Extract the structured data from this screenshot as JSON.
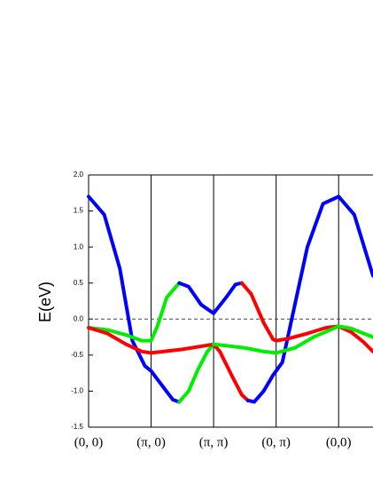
{
  "chart_data": {
    "type": "line",
    "ylabel": "E(eV)",
    "xlim": [
      0,
      4.55
    ],
    "ylim": [
      -1.5,
      2.0
    ],
    "xticks": [
      {
        "value": 0,
        "label": "(0, 0)"
      },
      {
        "value": 1,
        "label": "(π, 0)"
      },
      {
        "value": 2,
        "label": "(π, π)"
      },
      {
        "value": 3,
        "label": "(0, π)"
      },
      {
        "value": 4,
        "label": "(0,0)"
      }
    ],
    "yticks": [
      -1.5,
      {
        "value": -1.0,
        "label": "-1.0"
      },
      -0.5,
      {
        "value": 0.0,
        "label": "0.0"
      },
      0.5,
      {
        "value": 1.0,
        "label": "1.0"
      },
      1.5,
      {
        "value": 2.0,
        "label": "2.0"
      }
    ],
    "vlines": true,
    "zero_line": true,
    "series": [
      {
        "color": "#0000ff",
        "x": [
          0,
          0.25,
          0.5,
          0.7,
          0.9,
          1.0,
          1.2,
          1.35,
          1.45
        ],
        "values": [
          1.7,
          1.45,
          0.7,
          -0.3,
          -0.65,
          -0.72,
          -0.95,
          -1.12,
          -1.15
        ]
      },
      {
        "color": "#00ee00",
        "x": [
          1.45,
          1.6,
          1.75,
          1.9,
          2.0
        ],
        "values": [
          -1.15,
          -1.0,
          -0.7,
          -0.45,
          -0.35
        ]
      },
      {
        "color": "#ff0000",
        "x": [
          2.0,
          2.1,
          2.3,
          2.45,
          2.55
        ],
        "values": [
          -0.35,
          -0.45,
          -0.8,
          -1.05,
          -1.13
        ]
      },
      {
        "color": "#0000ff",
        "x": [
          2.55,
          2.65,
          2.8,
          2.95,
          3.0,
          3.1,
          3.3,
          3.5,
          3.75,
          4.0,
          4.25,
          4.55
        ],
        "values": [
          -1.13,
          -1.15,
          -1.0,
          -0.78,
          -0.72,
          -0.6,
          0.2,
          1.0,
          1.6,
          1.7,
          1.45,
          0.6
        ]
      },
      {
        "color": "#00ee00",
        "x": [
          0,
          0.3,
          0.6,
          0.85,
          1.0,
          1.1,
          1.25,
          1.45
        ],
        "values": [
          -0.12,
          -0.15,
          -0.22,
          -0.3,
          -0.3,
          -0.1,
          0.3,
          0.5
        ]
      },
      {
        "color": "#0000ff",
        "x": [
          1.45,
          1.6,
          1.8,
          2.0,
          2.2,
          2.35,
          2.45
        ],
        "values": [
          0.5,
          0.45,
          0.2,
          0.08,
          0.3,
          0.48,
          0.5
        ]
      },
      {
        "color": "#ff0000",
        "x": [
          2.45,
          2.6,
          2.8,
          2.95,
          3.0,
          3.2,
          3.5,
          3.8,
          4.0,
          4.2,
          4.4,
          4.55
        ],
        "values": [
          0.5,
          0.35,
          -0.05,
          -0.28,
          -0.3,
          -0.27,
          -0.2,
          -0.12,
          -0.1,
          -0.18,
          -0.32,
          -0.45
        ]
      },
      {
        "color": "#ff0000",
        "x": [
          0,
          0.3,
          0.6,
          0.85,
          1.0,
          1.5,
          2.0
        ],
        "values": [
          -0.12,
          -0.2,
          -0.35,
          -0.45,
          -0.47,
          -0.42,
          -0.35
        ]
      },
      {
        "color": "#00ee00",
        "x": [
          2.0,
          2.5,
          2.8,
          3.0,
          3.3,
          3.6,
          4.0,
          4.2,
          4.4,
          4.55
        ],
        "values": [
          -0.35,
          -0.4,
          -0.45,
          -0.47,
          -0.4,
          -0.25,
          -0.1,
          -0.13,
          -0.2,
          -0.25
        ]
      }
    ]
  }
}
